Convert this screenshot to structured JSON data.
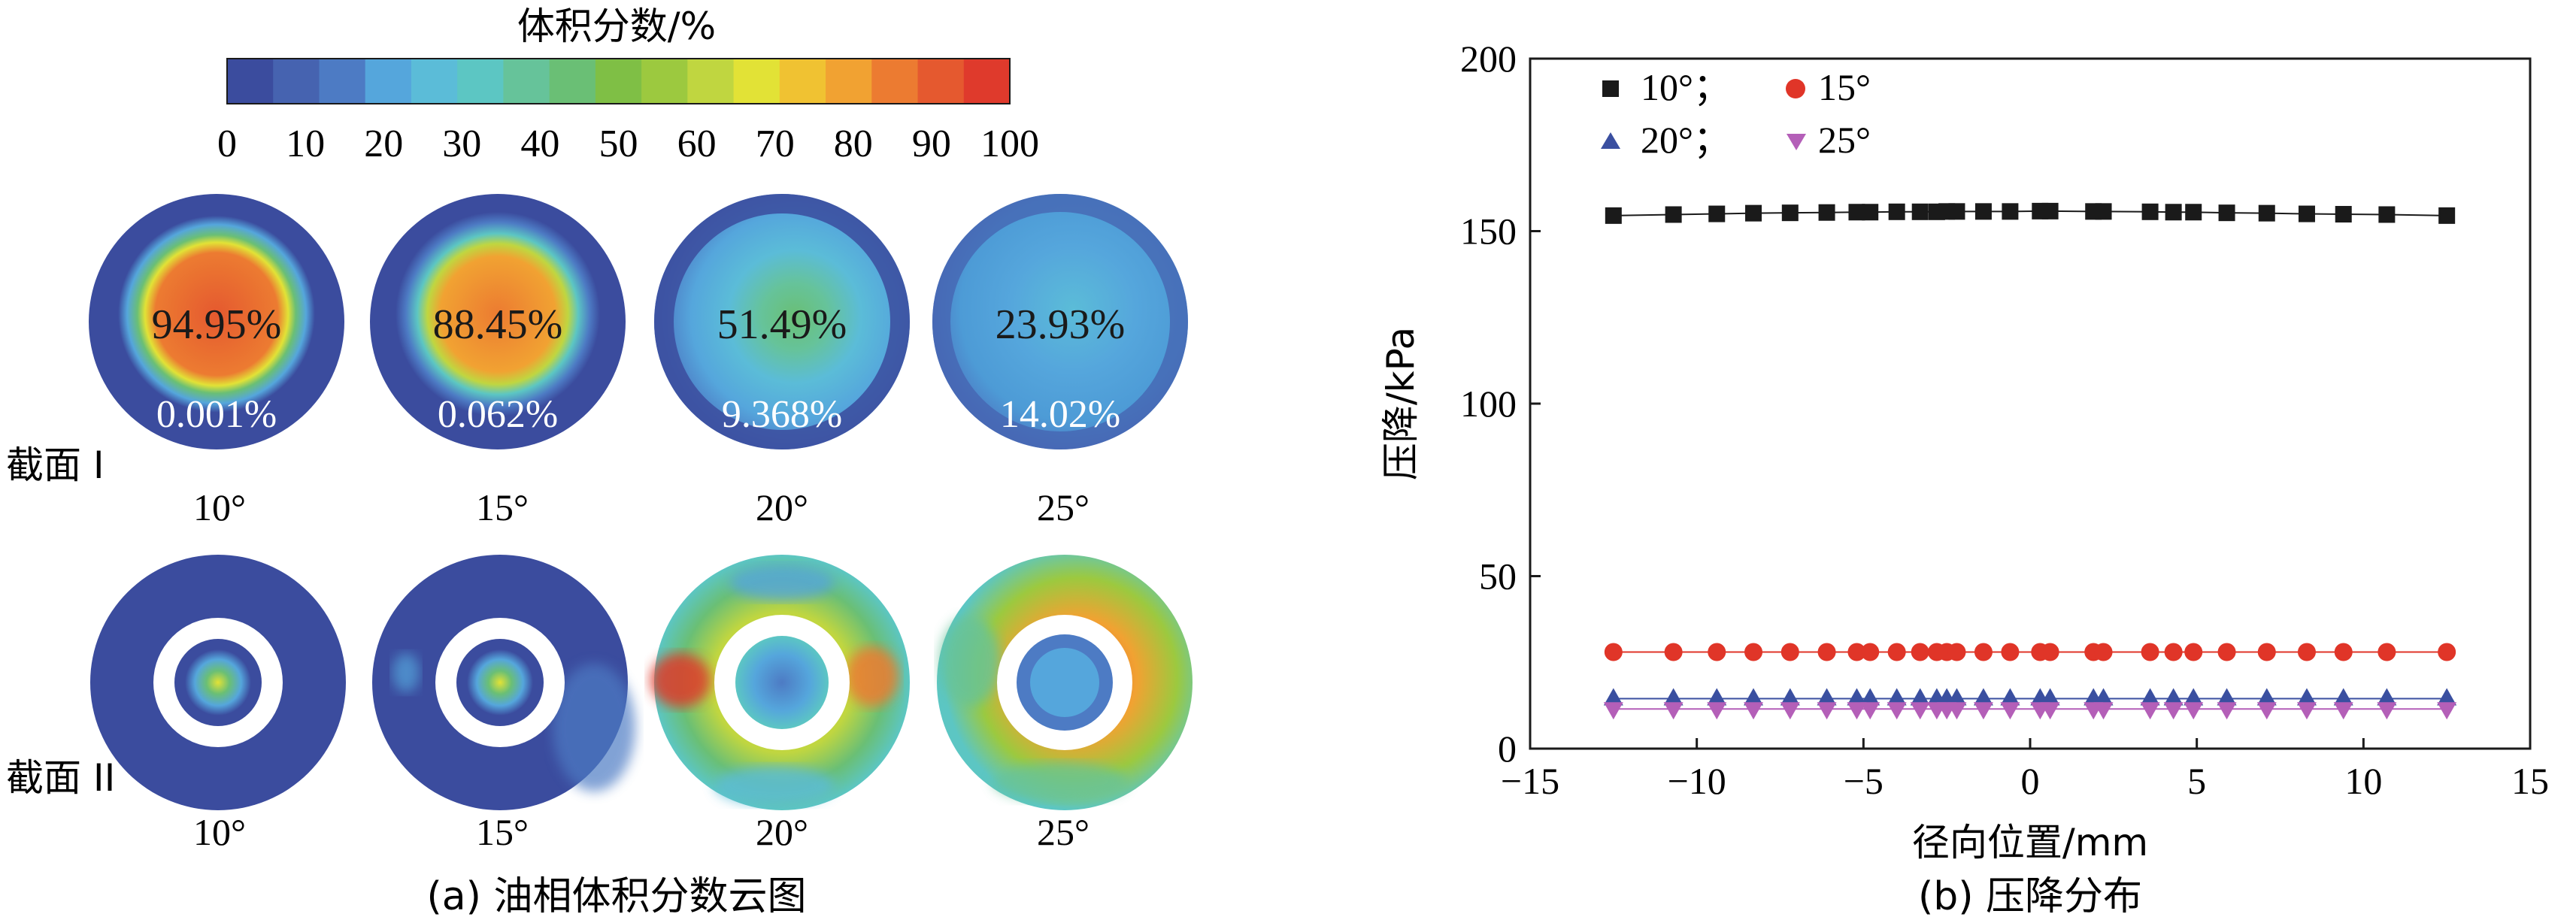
{
  "panel_a": {
    "caption": "(a) 油相体积分数云图",
    "colorbar": {
      "title": "体积分数/%",
      "ticks": [
        "0",
        "10",
        "20",
        "30",
        "40",
        "50",
        "60",
        "70",
        "80",
        "90",
        "100"
      ],
      "colors": [
        "#3b4c9e",
        "#4663b0",
        "#4d7bc4",
        "#55a6dc",
        "#5bbcd8",
        "#5cc6c3",
        "#66c39a",
        "#6abf75",
        "#7fbf45",
        "#9cc93f",
        "#c0d640",
        "#e2e236",
        "#f0c232",
        "#f1a232",
        "#ec7b31",
        "#e5592f",
        "#df3a2c"
      ]
    },
    "row1": {
      "label": "截面 I",
      "cells": [
        {
          "angle": "10°",
          "center_pct": "94.95%",
          "edge_pct": "0.001%"
        },
        {
          "angle": "15°",
          "center_pct": "88.45%",
          "edge_pct": "0.062%"
        },
        {
          "angle": "20°",
          "center_pct": "51.49%",
          "edge_pct": "9.368%"
        },
        {
          "angle": "25°",
          "center_pct": "23.93%",
          "edge_pct": "14.02%"
        }
      ]
    },
    "row2": {
      "label": "截面 II",
      "angles": [
        "10°",
        "15°",
        "20°",
        "25°"
      ]
    }
  },
  "panel_b": {
    "caption": "(b) 压降分布",
    "chart_data": {
      "type": "scatter",
      "title": "",
      "xlabel": "径向位置/mm",
      "ylabel": "压降/kPa",
      "xlim": [
        -15,
        15
      ],
      "ylim": [
        0,
        200
      ],
      "xticks": [
        -15,
        -10,
        -5,
        0,
        5,
        10,
        15
      ],
      "yticks": [
        0,
        50,
        100,
        150,
        200
      ],
      "x": [
        -12.5,
        -10.7,
        -9.4,
        -8.3,
        -7.2,
        -6.1,
        -5.2,
        -4.8,
        -4.0,
        -3.3,
        -2.8,
        -2.5,
        -2.2,
        -1.4,
        -0.6,
        0.3,
        0.6,
        1.9,
        2.2,
        3.6,
        4.3,
        4.9,
        5.9,
        7.1,
        8.3,
        9.4,
        10.7,
        12.5
      ],
      "series": [
        {
          "name": "10°",
          "marker": "square",
          "color": "#1a1a1a",
          "values": [
            154.5,
            154.8,
            155.0,
            155.2,
            155.3,
            155.4,
            155.5,
            155.5,
            155.6,
            155.6,
            155.6,
            155.7,
            155.7,
            155.7,
            155.7,
            155.8,
            155.8,
            155.7,
            155.7,
            155.6,
            155.5,
            155.5,
            155.3,
            155.2,
            155.0,
            154.9,
            154.8,
            154.5
          ]
        },
        {
          "name": "15°",
          "marker": "circle",
          "color": "#e03528",
          "values": [
            28,
            28,
            28,
            28,
            28,
            28,
            28,
            28,
            28,
            28,
            28,
            28,
            28,
            28,
            28,
            28,
            28,
            28,
            28,
            28,
            28,
            28,
            28,
            28,
            28,
            28,
            28,
            28
          ]
        },
        {
          "name": "20°",
          "marker": "triangle-up",
          "color": "#3a4fa0",
          "values": [
            14.5,
            14.5,
            14.5,
            14.5,
            14.5,
            14.5,
            14.5,
            14.5,
            14.5,
            14.5,
            14.5,
            14.5,
            14.5,
            14.5,
            14.5,
            14.5,
            14.5,
            14.5,
            14.5,
            14.5,
            14.5,
            14.5,
            14.5,
            14.5,
            14.5,
            14.5,
            14.5,
            14.5
          ]
        },
        {
          "name": "25°",
          "marker": "triangle-down",
          "color": "#b45fb8",
          "values": [
            11.5,
            11.5,
            11.5,
            11.5,
            11.5,
            11.5,
            11.5,
            11.5,
            11.5,
            11.5,
            11.5,
            11.5,
            11.5,
            11.5,
            11.5,
            11.5,
            11.5,
            11.5,
            11.5,
            11.5,
            11.5,
            11.5,
            11.5,
            11.5,
            11.5,
            11.5,
            11.5,
            11.5
          ]
        }
      ],
      "legend": {
        "placement": "top-left",
        "rows": [
          [
            "10°；",
            "15°"
          ],
          [
            "20°；",
            "25°"
          ]
        ]
      }
    }
  }
}
